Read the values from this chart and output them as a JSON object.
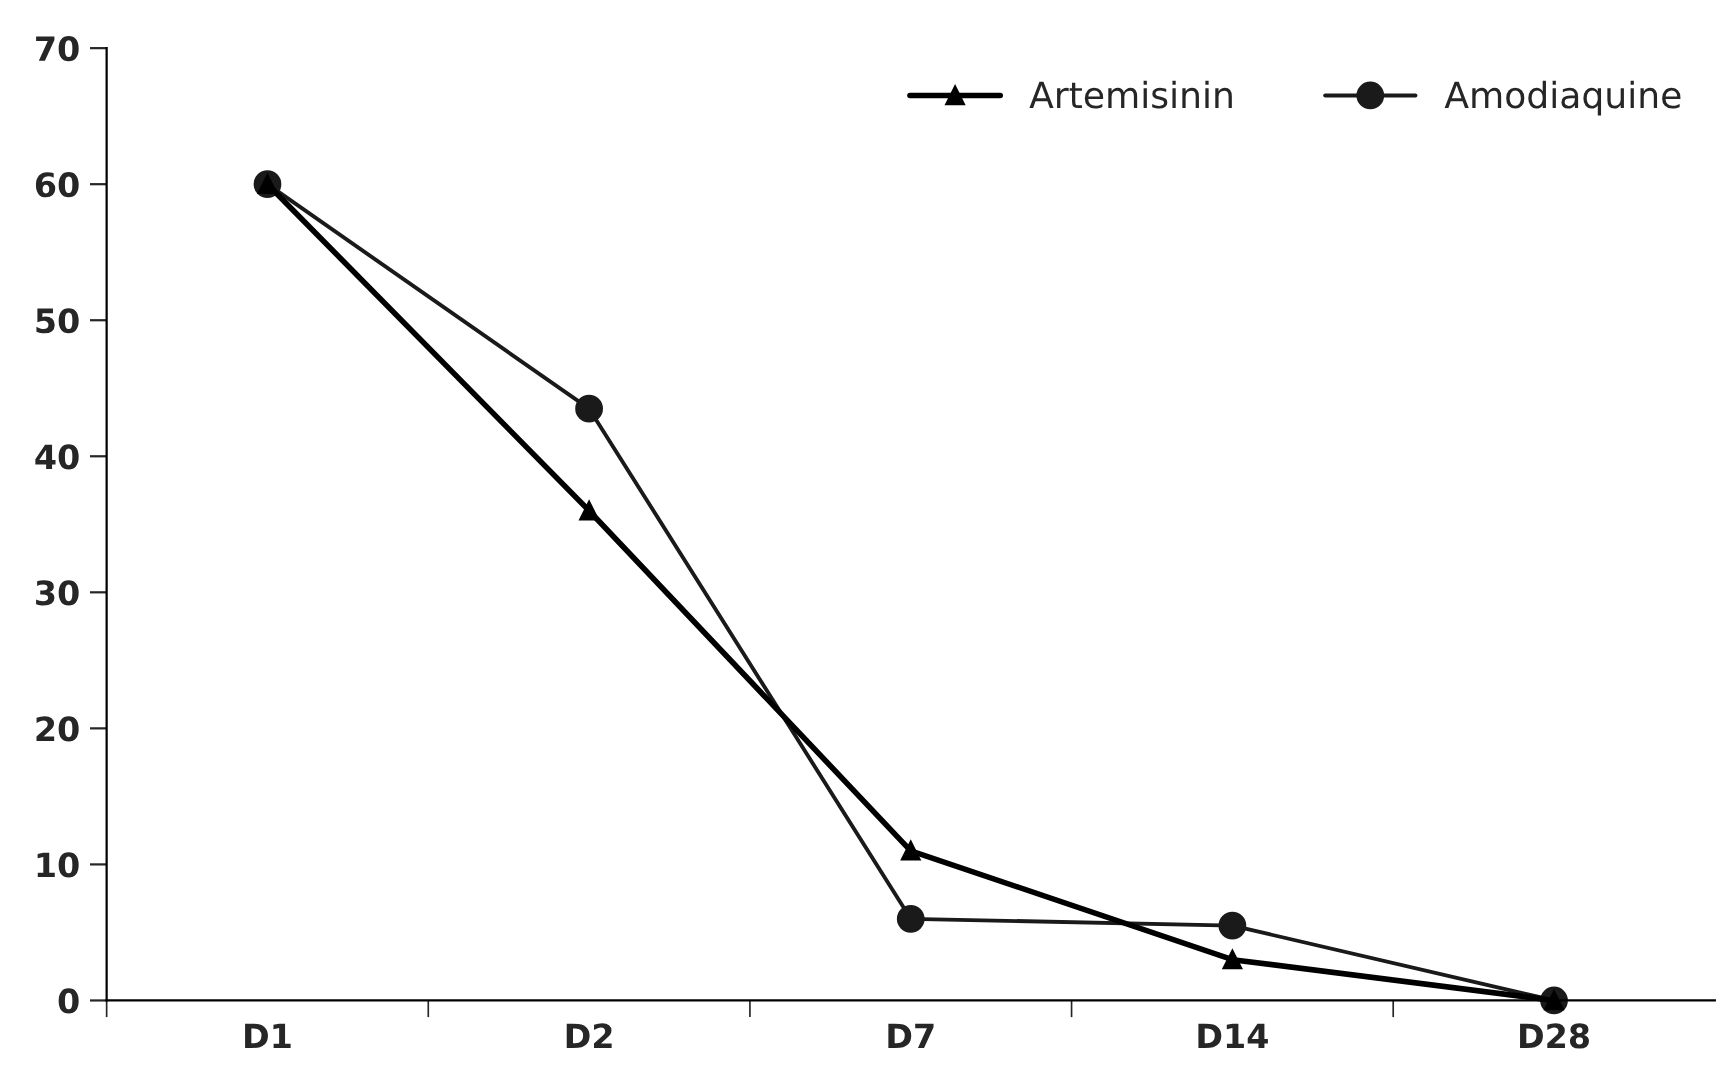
{
  "chart_data": {
    "type": "line",
    "categories": [
      "D1",
      "D2",
      "D7",
      "D14",
      "D28"
    ],
    "series": [
      {
        "name": "Artemisinin",
        "color": "#000000",
        "marker": "triangle",
        "values": [
          60,
          36,
          11,
          3,
          0
        ]
      },
      {
        "name": "Amodiaquine",
        "color": "#1a1a1a",
        "marker": "circle",
        "values": [
          60,
          43.5,
          6,
          5.5,
          0
        ]
      }
    ],
    "ylim": [
      0,
      70
    ],
    "yticks": [
      0,
      10,
      20,
      30,
      40,
      50,
      60,
      70
    ],
    "grid": false,
    "legend": "top right",
    "line_style": "solid"
  }
}
